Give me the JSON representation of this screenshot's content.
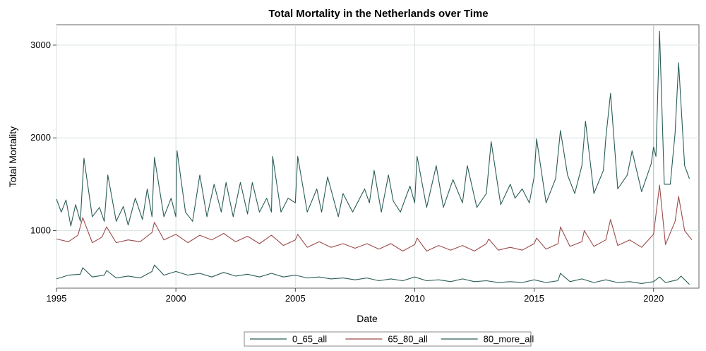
{
  "chart_data": {
    "type": "line",
    "title": "Total Mortality in the Netherlands over Time",
    "xlabel": "Date",
    "ylabel": "Total Mortality",
    "xlim": [
      1995,
      2021.9
    ],
    "ylim": [
      380,
      3220
    ],
    "x_ticks": [
      1995,
      2000,
      2005,
      2010,
      2015,
      2020
    ],
    "y_ticks": [
      1000,
      2000,
      3000
    ],
    "grid": true,
    "legend_position": "bottom",
    "reference_line_x": 2020,
    "colors": {
      "0_65_all": "#2a5d57",
      "65_80_all": "#9c4a4a",
      "80_more_all": "#2a5d57",
      "grid": "#d7e0e0",
      "reference": "#b7ccd0"
    },
    "series": [
      {
        "name": "0_65_all",
        "points": [
          [
            1995.0,
            480
          ],
          [
            1995.5,
            520
          ],
          [
            1996.0,
            530
          ],
          [
            1996.1,
            600
          ],
          [
            1996.5,
            500
          ],
          [
            1997.0,
            520
          ],
          [
            1997.1,
            570
          ],
          [
            1997.5,
            490
          ],
          [
            1998.0,
            510
          ],
          [
            1998.5,
            490
          ],
          [
            1999.0,
            560
          ],
          [
            1999.1,
            630
          ],
          [
            1999.5,
            520
          ],
          [
            2000.0,
            560
          ],
          [
            2000.5,
            520
          ],
          [
            2001.0,
            540
          ],
          [
            2001.5,
            500
          ],
          [
            2002.0,
            550
          ],
          [
            2002.5,
            510
          ],
          [
            2003.0,
            530
          ],
          [
            2003.5,
            500
          ],
          [
            2004.0,
            540
          ],
          [
            2004.5,
            500
          ],
          [
            2005.0,
            520
          ],
          [
            2005.5,
            490
          ],
          [
            2006.0,
            500
          ],
          [
            2006.5,
            480
          ],
          [
            2007.0,
            490
          ],
          [
            2007.5,
            470
          ],
          [
            2008.0,
            490
          ],
          [
            2008.5,
            460
          ],
          [
            2009.0,
            480
          ],
          [
            2009.5,
            460
          ],
          [
            2010.0,
            500
          ],
          [
            2010.5,
            460
          ],
          [
            2011.0,
            470
          ],
          [
            2011.5,
            450
          ],
          [
            2012.0,
            480
          ],
          [
            2012.5,
            450
          ],
          [
            2013.0,
            460
          ],
          [
            2013.5,
            440
          ],
          [
            2014.0,
            450
          ],
          [
            2014.5,
            440
          ],
          [
            2015.0,
            470
          ],
          [
            2015.5,
            440
          ],
          [
            2016.0,
            460
          ],
          [
            2016.1,
            540
          ],
          [
            2016.5,
            450
          ],
          [
            2017.0,
            480
          ],
          [
            2017.5,
            440
          ],
          [
            2018.0,
            470
          ],
          [
            2018.5,
            440
          ],
          [
            2019.0,
            450
          ],
          [
            2019.5,
            430
          ],
          [
            2020.0,
            450
          ],
          [
            2020.25,
            500
          ],
          [
            2020.5,
            440
          ],
          [
            2021.0,
            470
          ],
          [
            2021.15,
            510
          ],
          [
            2021.5,
            420
          ]
        ]
      },
      {
        "name": "65_80_all",
        "points": [
          [
            1995.0,
            910
          ],
          [
            1995.5,
            880
          ],
          [
            1995.9,
            950
          ],
          [
            1996.1,
            1140
          ],
          [
            1996.5,
            870
          ],
          [
            1996.9,
            930
          ],
          [
            1997.1,
            1040
          ],
          [
            1997.5,
            870
          ],
          [
            1998.0,
            900
          ],
          [
            1998.5,
            880
          ],
          [
            1999.0,
            980
          ],
          [
            1999.1,
            1090
          ],
          [
            1999.5,
            900
          ],
          [
            2000.0,
            960
          ],
          [
            2000.5,
            870
          ],
          [
            2001.0,
            950
          ],
          [
            2001.5,
            900
          ],
          [
            2002.0,
            970
          ],
          [
            2002.5,
            880
          ],
          [
            2003.0,
            940
          ],
          [
            2003.5,
            860
          ],
          [
            2004.0,
            950
          ],
          [
            2004.5,
            840
          ],
          [
            2005.0,
            900
          ],
          [
            2005.1,
            960
          ],
          [
            2005.5,
            820
          ],
          [
            2006.0,
            880
          ],
          [
            2006.5,
            820
          ],
          [
            2007.0,
            860
          ],
          [
            2007.5,
            810
          ],
          [
            2008.0,
            860
          ],
          [
            2008.5,
            800
          ],
          [
            2009.0,
            860
          ],
          [
            2009.5,
            780
          ],
          [
            2010.0,
            850
          ],
          [
            2010.1,
            920
          ],
          [
            2010.5,
            780
          ],
          [
            2011.0,
            840
          ],
          [
            2011.5,
            790
          ],
          [
            2012.0,
            840
          ],
          [
            2012.5,
            780
          ],
          [
            2013.0,
            860
          ],
          [
            2013.1,
            910
          ],
          [
            2013.5,
            790
          ],
          [
            2014.0,
            820
          ],
          [
            2014.5,
            790
          ],
          [
            2015.0,
            860
          ],
          [
            2015.1,
            920
          ],
          [
            2015.5,
            800
          ],
          [
            2016.0,
            860
          ],
          [
            2016.1,
            1040
          ],
          [
            2016.5,
            830
          ],
          [
            2017.0,
            880
          ],
          [
            2017.1,
            1000
          ],
          [
            2017.5,
            830
          ],
          [
            2018.0,
            900
          ],
          [
            2018.2,
            1120
          ],
          [
            2018.5,
            840
          ],
          [
            2019.0,
            900
          ],
          [
            2019.5,
            820
          ],
          [
            2020.0,
            960
          ],
          [
            2020.25,
            1490
          ],
          [
            2020.5,
            850
          ],
          [
            2020.9,
            1100
          ],
          [
            2021.05,
            1370
          ],
          [
            2021.3,
            1000
          ],
          [
            2021.6,
            900
          ]
        ]
      },
      {
        "name": "80_more_all",
        "points": [
          [
            1995.0,
            1340
          ],
          [
            1995.2,
            1200
          ],
          [
            1995.4,
            1330
          ],
          [
            1995.6,
            1050
          ],
          [
            1995.8,
            1280
          ],
          [
            1996.0,
            1100
          ],
          [
            1996.15,
            1780
          ],
          [
            1996.5,
            1150
          ],
          [
            1996.8,
            1250
          ],
          [
            1997.0,
            1100
          ],
          [
            1997.15,
            1600
          ],
          [
            1997.5,
            1100
          ],
          [
            1997.8,
            1260
          ],
          [
            1998.0,
            1060
          ],
          [
            1998.3,
            1350
          ],
          [
            1998.6,
            1120
          ],
          [
            1998.8,
            1450
          ],
          [
            1999.0,
            1150
          ],
          [
            1999.1,
            1790
          ],
          [
            1999.5,
            1150
          ],
          [
            1999.8,
            1350
          ],
          [
            2000.0,
            1150
          ],
          [
            2000.05,
            1860
          ],
          [
            2000.4,
            1200
          ],
          [
            2000.7,
            1100
          ],
          [
            2001.0,
            1600
          ],
          [
            2001.3,
            1150
          ],
          [
            2001.6,
            1500
          ],
          [
            2001.9,
            1200
          ],
          [
            2002.1,
            1520
          ],
          [
            2002.4,
            1150
          ],
          [
            2002.7,
            1520
          ],
          [
            2003.0,
            1180
          ],
          [
            2003.2,
            1520
          ],
          [
            2003.5,
            1200
          ],
          [
            2003.8,
            1350
          ],
          [
            2004.0,
            1200
          ],
          [
            2004.05,
            1800
          ],
          [
            2004.4,
            1200
          ],
          [
            2004.7,
            1350
          ],
          [
            2005.0,
            1300
          ],
          [
            2005.1,
            1800
          ],
          [
            2005.5,
            1200
          ],
          [
            2005.9,
            1450
          ],
          [
            2006.1,
            1200
          ],
          [
            2006.35,
            1580
          ],
          [
            2006.8,
            1150
          ],
          [
            2007.0,
            1400
          ],
          [
            2007.4,
            1200
          ],
          [
            2007.9,
            1450
          ],
          [
            2008.1,
            1300
          ],
          [
            2008.3,
            1650
          ],
          [
            2008.6,
            1200
          ],
          [
            2008.9,
            1600
          ],
          [
            2009.1,
            1320
          ],
          [
            2009.4,
            1200
          ],
          [
            2009.8,
            1480
          ],
          [
            2010.0,
            1300
          ],
          [
            2010.1,
            1800
          ],
          [
            2010.5,
            1250
          ],
          [
            2010.9,
            1700
          ],
          [
            2011.2,
            1250
          ],
          [
            2011.6,
            1550
          ],
          [
            2012.0,
            1300
          ],
          [
            2012.2,
            1700
          ],
          [
            2012.6,
            1250
          ],
          [
            2013.0,
            1400
          ],
          [
            2013.2,
            1960
          ],
          [
            2013.6,
            1280
          ],
          [
            2014.0,
            1500
          ],
          [
            2014.2,
            1350
          ],
          [
            2014.5,
            1450
          ],
          [
            2014.8,
            1300
          ],
          [
            2015.0,
            1580
          ],
          [
            2015.1,
            1990
          ],
          [
            2015.5,
            1300
          ],
          [
            2015.9,
            1560
          ],
          [
            2016.1,
            2080
          ],
          [
            2016.4,
            1600
          ],
          [
            2016.7,
            1400
          ],
          [
            2017.0,
            1700
          ],
          [
            2017.15,
            2180
          ],
          [
            2017.5,
            1400
          ],
          [
            2017.9,
            1650
          ],
          [
            2018.0,
            2000
          ],
          [
            2018.2,
            2480
          ],
          [
            2018.5,
            1450
          ],
          [
            2018.9,
            1600
          ],
          [
            2019.1,
            1860
          ],
          [
            2019.5,
            1420
          ],
          [
            2019.9,
            1720
          ],
          [
            2020.0,
            1900
          ],
          [
            2020.1,
            1800
          ],
          [
            2020.25,
            3150
          ],
          [
            2020.45,
            1500
          ],
          [
            2020.7,
            1500
          ],
          [
            2020.9,
            2050
          ],
          [
            2021.05,
            2810
          ],
          [
            2021.3,
            1700
          ],
          [
            2021.5,
            1560
          ]
        ]
      }
    ]
  }
}
